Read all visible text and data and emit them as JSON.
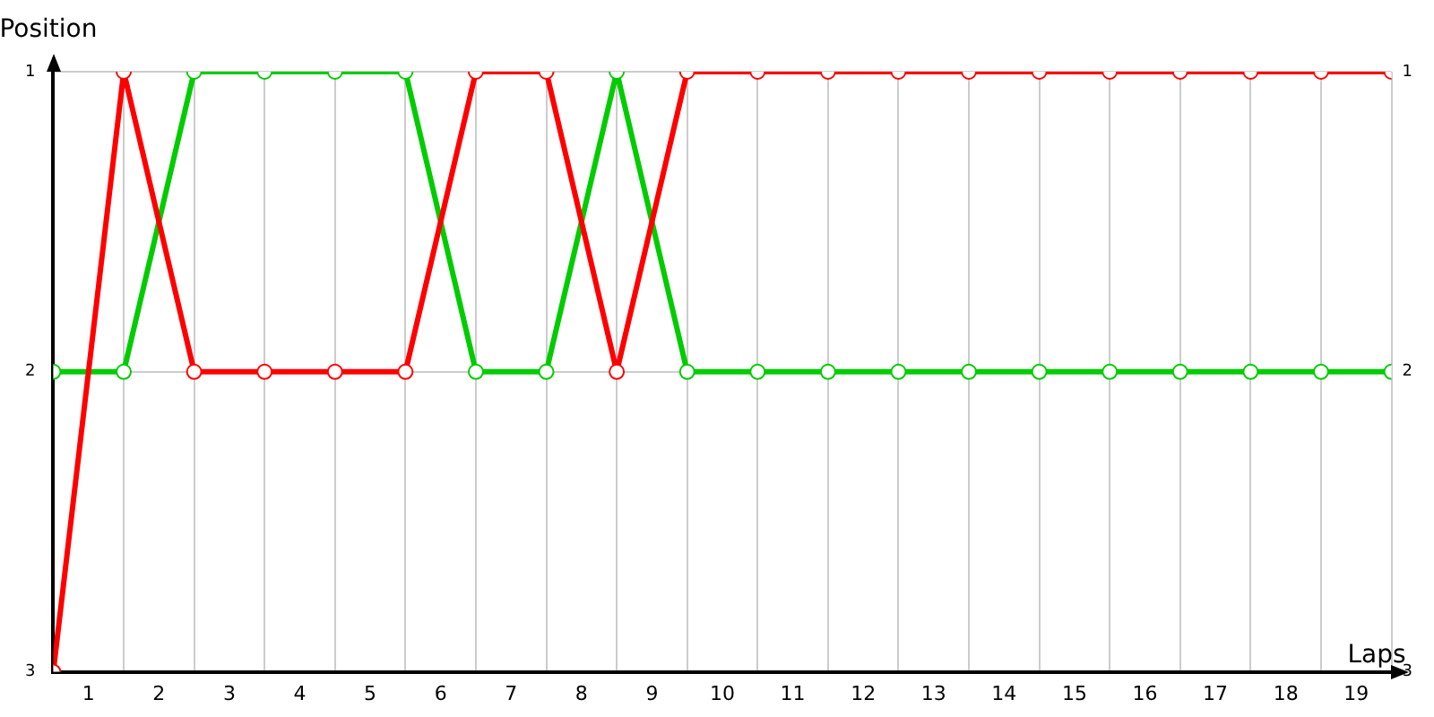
{
  "chart_data": {
    "type": "line",
    "ylabel": "Position",
    "xlabel": "Laps",
    "x": [
      0,
      1,
      2,
      3,
      4,
      5,
      6,
      7,
      8,
      9,
      10,
      11,
      12,
      13,
      14,
      15,
      16,
      17,
      18,
      19
    ],
    "series": [
      {
        "color": "#ff0000",
        "values": [
          3,
          1,
          2,
          2,
          2,
          2,
          1,
          1,
          2,
          1,
          1,
          1,
          1,
          1,
          1,
          1,
          1,
          1,
          1,
          1
        ]
      },
      {
        "color": "#00cc00",
        "values": [
          2,
          2,
          1,
          1,
          1,
          1,
          2,
          2,
          1,
          2,
          2,
          2,
          2,
          2,
          2,
          2,
          2,
          2,
          2,
          2
        ]
      }
    ],
    "xlim": [
      0,
      19
    ],
    "xticks": [
      {
        "value": 0,
        "label": null
      },
      {
        "value": 0.5,
        "label": "1"
      },
      {
        "value": 1,
        "label": null
      },
      {
        "value": 1.5,
        "label": "2"
      },
      {
        "value": 2,
        "label": null
      },
      {
        "value": 2.5,
        "label": "3"
      },
      {
        "value": 3,
        "label": null
      },
      {
        "value": 3.5,
        "label": "4"
      },
      {
        "value": 4,
        "label": null
      },
      {
        "value": 4.5,
        "label": "5"
      },
      {
        "value": 5,
        "label": null
      },
      {
        "value": 5.5,
        "label": "6"
      },
      {
        "value": 6,
        "label": null
      },
      {
        "value": 6.5,
        "label": "7"
      },
      {
        "value": 7,
        "label": null
      },
      {
        "value": 7.5,
        "label": "8"
      },
      {
        "value": 8,
        "label": null
      },
      {
        "value": 8.5,
        "label": "9"
      },
      {
        "value": 9,
        "label": null
      },
      {
        "value": 9.5,
        "label": "10"
      },
      {
        "value": 10,
        "label": null
      },
      {
        "value": 10.5,
        "label": "11"
      },
      {
        "value": 11,
        "label": null
      },
      {
        "value": 11.5,
        "label": "12"
      },
      {
        "value": 12,
        "label": null
      },
      {
        "value": 12.5,
        "label": "13"
      },
      {
        "value": 13,
        "label": null
      },
      {
        "value": 13.5,
        "label": "14"
      },
      {
        "value": 14,
        "label": null
      },
      {
        "value": 14.5,
        "label": "15"
      },
      {
        "value": 15,
        "label": null
      },
      {
        "value": 15.5,
        "label": "16"
      },
      {
        "value": 16,
        "label": null
      },
      {
        "value": 16.5,
        "label": "17"
      },
      {
        "value": 17,
        "label": null
      },
      {
        "value": 17.5,
        "label": "18"
      },
      {
        "value": 18,
        "label": null
      },
      {
        "value": 18.5,
        "label": "19"
      },
      {
        "value": 19,
        "label": null
      }
    ],
    "ylim": [
      3,
      1
    ],
    "yticks": [
      1,
      2,
      3
    ],
    "y2lim": [
      3,
      1
    ],
    "y2ticks": [
      1,
      2,
      3
    ],
    "grid": true,
    "legend": false,
    "marker": "circle",
    "line_style": "solid"
  }
}
